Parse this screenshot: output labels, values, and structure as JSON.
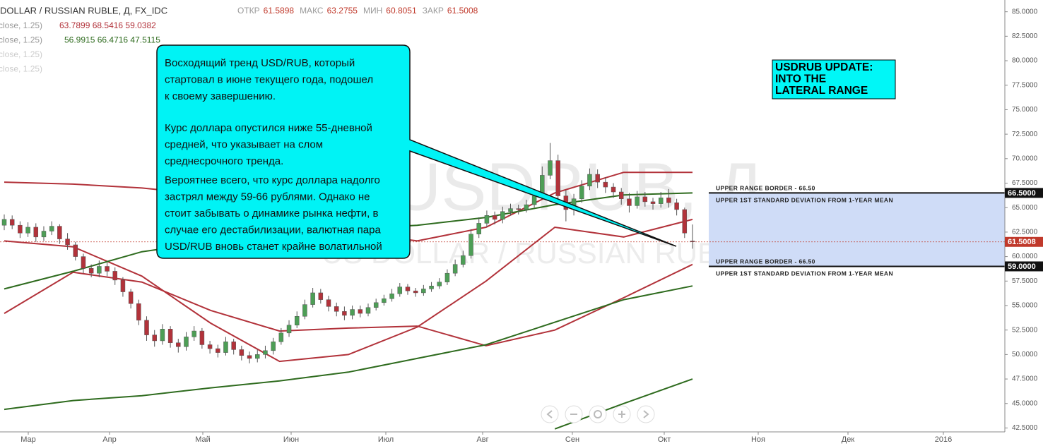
{
  "header": {
    "symbol": "DOLLAR / RUSSIAN RUBLE, Д, FX_IDC",
    "ohlc": [
      {
        "label": "ОТКР",
        "value": "61.5898"
      },
      {
        "label": "МАКС",
        "value": "63.2755"
      },
      {
        "label": "МИН",
        "value": "60.8051"
      },
      {
        "label": "ЗАКР",
        "value": "61.5008"
      }
    ]
  },
  "indicators": [
    {
      "params": "close, 1.25)",
      "values": "63.7899 68.5416 59.0382",
      "color": "#b2323a"
    },
    {
      "params": "close, 1.25)",
      "values": "56.9915 66.4716 47.5115",
      "color": "#2e6b1e"
    },
    {
      "params": "close, 1.25)"
    },
    {
      "params": "close, 1.25)"
    }
  ],
  "watermark": {
    "symbol": "USDRUB, Д",
    "description": "US DOLLAR / RUSSIAN RUBLE"
  },
  "chart_data": {
    "type": "candlestick",
    "up_color": "#4d9e56",
    "down_color": "#b2323a",
    "ylim": [
      42.1,
      86.2
    ],
    "yticks": [
      {
        "value": 42.5,
        "label": "42.5000"
      },
      {
        "value": 45,
        "label": "45.0000"
      },
      {
        "value": 47.5,
        "label": "47.5000"
      },
      {
        "value": 50,
        "label": "50.0000"
      },
      {
        "value": 52.5,
        "label": "52.5000"
      },
      {
        "value": 55,
        "label": "55.0000"
      },
      {
        "value": 57.5,
        "label": "57.5000"
      },
      {
        "value": 60,
        "label": "60.0000"
      },
      {
        "value": 62.5,
        "label": "62.5000"
      },
      {
        "value": 65,
        "label": "65.0000"
      },
      {
        "value": 67.5,
        "label": "67.5000"
      },
      {
        "value": 70,
        "label": "70.0000"
      },
      {
        "value": 72.5,
        "label": "72.5000"
      },
      {
        "value": 75,
        "label": "75.0000"
      },
      {
        "value": 77.5,
        "label": "77.5000"
      },
      {
        "value": 80,
        "label": "80.0000"
      },
      {
        "value": 82.5,
        "label": "82.5000"
      },
      {
        "value": 85,
        "label": "85.0000"
      }
    ],
    "categories": [
      "Мар",
      "Апр",
      "Май",
      "Июн",
      "Июл",
      "Авг",
      "Сен",
      "Окт",
      "Ноя",
      "Дек",
      "2016"
    ],
    "open": [
      63.2,
      63.8,
      63.2,
      62.4,
      63.0,
      62.0,
      62.6,
      63.1,
      61.8,
      61.2,
      60.0,
      58.8,
      58.3,
      59.0,
      58.5,
      57.6,
      56.4,
      55.2,
      53.5,
      52.0,
      51.4,
      52.6,
      51.2,
      50.8,
      51.8,
      52.4,
      51.0,
      50.6,
      50.2,
      51.3,
      50.5,
      49.9,
      49.6,
      50.0,
      50.4,
      51.3,
      52.2,
      53.0,
      53.9,
      55.1,
      56.3,
      55.6,
      54.9,
      54.4,
      54.0,
      54.6,
      54.2,
      54.8,
      55.3,
      55.7,
      56.2,
      56.9,
      56.5,
      56.3,
      56.7,
      57.0,
      57.4,
      58.3,
      59.2,
      60.1,
      62.3,
      63.4,
      64.2,
      63.8,
      64.6,
      64.9,
      64.8,
      65.3,
      66.2,
      68.3,
      69.8,
      66.2,
      64.8,
      65.9,
      67.2,
      68.4,
      67.6,
      67.1,
      66.6,
      65.9,
      65.2,
      66.1,
      65.6,
      65.4,
      66.0,
      65.5,
      64.8,
      61.59
    ],
    "high": [
      64.3,
      64.2,
      63.6,
      63.5,
      63.4,
      63.1,
      63.6,
      63.3,
      62.4,
      61.5,
      60.3,
      59.2,
      59.6,
      59.4,
      58.9,
      57.9,
      56.7,
      55.6,
      53.9,
      52.5,
      53.1,
      52.9,
      51.6,
      52.3,
      52.9,
      52.7,
      51.4,
      51.0,
      51.8,
      51.6,
      50.9,
      50.3,
      50.5,
      50.9,
      51.7,
      52.7,
      53.5,
      54.4,
      55.6,
      56.8,
      56.7,
      56.0,
      55.3,
      54.9,
      55.0,
      55.0,
      55.2,
      55.7,
      56.1,
      56.7,
      57.3,
      57.2,
      56.8,
      57.1,
      57.4,
      57.8,
      58.7,
      59.7,
      60.6,
      62.8,
      64.0,
      64.7,
      64.6,
      65.1,
      65.4,
      65.3,
      65.8,
      66.8,
      69.2,
      71.6,
      70.4,
      66.8,
      66.4,
      67.8,
      69.0,
      68.9,
      68.1,
      67.5,
      67.0,
      66.5,
      66.7,
      66.6,
      66.0,
      66.6,
      66.9,
      65.9,
      65.0,
      63.28
    ],
    "low": [
      62.7,
      62.8,
      61.9,
      62.0,
      61.5,
      61.6,
      62.2,
      61.3,
      60.7,
      59.6,
      58.3,
      57.9,
      57.9,
      58.0,
      57.1,
      55.9,
      54.7,
      53.0,
      51.4,
      50.8,
      51.0,
      50.7,
      50.2,
      50.4,
      51.4,
      50.6,
      50.1,
      49.7,
      49.9,
      50.0,
      49.4,
      49.1,
      49.2,
      49.6,
      50.0,
      51.0,
      51.8,
      52.7,
      53.6,
      54.8,
      55.2,
      54.4,
      53.9,
      53.5,
      53.6,
      53.8,
      53.9,
      54.5,
      55.0,
      55.4,
      55.9,
      56.1,
      55.9,
      56.0,
      56.4,
      56.7,
      57.1,
      58.0,
      58.9,
      59.8,
      61.9,
      63.0,
      63.3,
      63.4,
      64.2,
      64.3,
      64.5,
      65.0,
      65.9,
      67.9,
      65.4,
      63.6,
      64.2,
      65.5,
      66.8,
      67.0,
      66.5,
      66.0,
      65.3,
      64.5,
      64.9,
      65.1,
      64.8,
      65.0,
      65.0,
      64.2,
      61.9,
      60.81
    ],
    "close": [
      63.8,
      63.2,
      62.4,
      63.0,
      62.0,
      62.6,
      63.1,
      61.8,
      61.2,
      60.0,
      58.8,
      58.3,
      59.0,
      58.5,
      57.6,
      56.4,
      55.2,
      53.5,
      52.0,
      51.4,
      52.6,
      51.2,
      50.8,
      51.8,
      52.4,
      51.0,
      50.6,
      50.2,
      51.3,
      50.5,
      49.9,
      49.6,
      50.0,
      50.4,
      51.3,
      52.2,
      53.0,
      53.9,
      55.1,
      56.3,
      55.6,
      54.9,
      54.4,
      54.0,
      54.6,
      54.2,
      54.8,
      55.3,
      55.7,
      56.2,
      56.9,
      56.5,
      56.3,
      56.7,
      57.0,
      57.4,
      58.3,
      59.2,
      60.1,
      62.3,
      63.4,
      64.2,
      63.8,
      64.6,
      64.9,
      64.8,
      65.3,
      66.2,
      68.3,
      69.8,
      66.2,
      64.8,
      65.9,
      67.2,
      68.4,
      67.6,
      67.1,
      66.6,
      65.9,
      65.2,
      66.1,
      65.6,
      65.4,
      66.0,
      65.5,
      64.8,
      62.4,
      61.5
    ],
    "bands": [
      {
        "color": "#b2323a",
        "values": [
          67.6,
          67.4,
          67.0,
          66.3,
          64.5,
          62.5,
          61.6,
          63.0,
          66.5,
          68.6,
          68.6
        ]
      },
      {
        "color": "#b2323a",
        "values": [
          61.6,
          61.0,
          58.0,
          53.2,
          49.3,
          50.0,
          52.8,
          57.5,
          63.0,
          62.0,
          63.8
        ]
      },
      {
        "color": "#b2323a",
        "values": [
          54.2,
          58.4,
          57.4,
          54.5,
          52.4,
          52.7,
          52.9,
          50.9,
          52.5,
          55.8,
          59.2
        ]
      },
      {
        "color": "#2e6b1e",
        "values": [
          56.7,
          58.5,
          60.5,
          61.5,
          62.2,
          62.8,
          63.2,
          64.0,
          65.3,
          66.3,
          66.5
        ]
      },
      {
        "color": "#2e6b1e",
        "values": [
          44.4,
          45.3,
          45.8,
          46.6,
          47.3,
          48.2,
          49.6,
          51.0,
          53.3,
          55.6,
          57.0
        ]
      },
      {
        "color": "#2e6b1e",
        "values": [
          null,
          null,
          null,
          null,
          null,
          null,
          null,
          null,
          42.4,
          45.0,
          47.5
        ]
      }
    ],
    "price_levels": [
      {
        "value": 66.5,
        "label": "66.5000",
        "color": "#111"
      },
      {
        "value": 61.5008,
        "label": "61.5008",
        "color": "#c0392b"
      },
      {
        "value": 59,
        "label": "59.0000",
        "color": "#111"
      }
    ],
    "range_fill": "#cfdcf7"
  },
  "annotations": {
    "callout": [
      [
        "Восходящий тренд USD/RUB, который",
        "стартовал в июне текущего года, подошел",
        "к своему завершению."
      ],
      [
        "Курс доллара опустился ниже 55-дневной",
        "средней, что указывает на слом",
        "среднесрочного тренда."
      ],
      [
        "Вероятнее всего, что курс доллара надолго",
        "застрял между  59-66 рублями. Однако не",
        "стоит забывать о динамике рынка нефти, в",
        "случае его дестабилизации, валютная пара",
        "USD/RUB вновь станет крайне волатильной"
      ]
    ],
    "title_box": [
      "USDRUB UPDATE:",
      "INTO THE",
      "LATERAL RANGE"
    ],
    "range_labels": [
      "UPPER RANGE BORDER - 66.50",
      "UPPER 1ST STANDARD DEVIATION FROM 1-YEAR MEAN",
      "UPPER RANGE BORDER - 66.50",
      "UPPER 1ST STANDARD DEVIATION FROM 1-YEAR MEAN"
    ]
  }
}
